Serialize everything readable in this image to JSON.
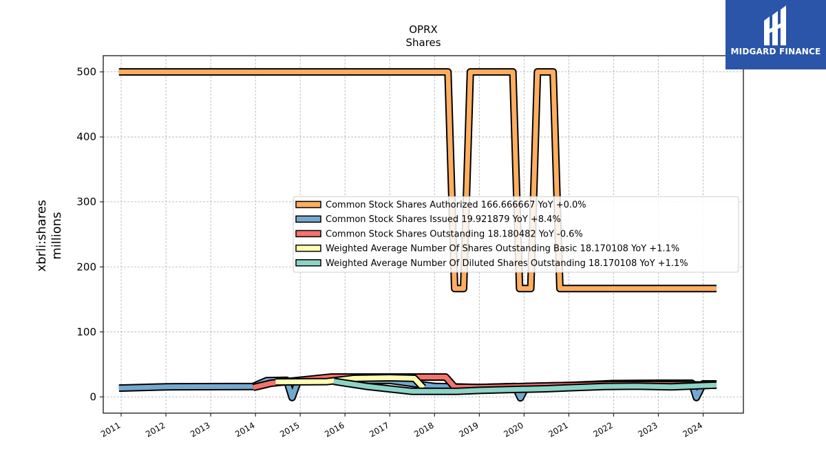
{
  "brand": {
    "name": "MIDGARD FINANCE",
    "color": "#2a55a8"
  },
  "chart_data": {
    "type": "line",
    "title": "OPRX",
    "subtitle": "Shares",
    "ylabel": "xbrli:shares",
    "ylabel2": "millions",
    "xlabel": "",
    "xlim": [
      2010.6,
      2024.9
    ],
    "ylim": [
      -25,
      525
    ],
    "yticks": [
      0,
      100,
      200,
      300,
      400,
      500
    ],
    "xticks": [
      2011,
      2012,
      2013,
      2014,
      2015,
      2016,
      2017,
      2018,
      2019,
      2020,
      2021,
      2022,
      2023,
      2024
    ],
    "grid": true,
    "legend_position": "center-right",
    "series": [
      {
        "name": "Common Stock Shares Authorized  166.666667 YoY +0.0%",
        "color": "#fdae61",
        "x": [
          2010.95,
          2018.3,
          2018.45,
          2018.65,
          2018.8,
          2018.95,
          2019.75,
          2019.9,
          2020.15,
          2020.3,
          2020.45,
          2020.65,
          2020.8,
          2021.35,
          2024.3
        ],
        "y": [
          500,
          500,
          166.67,
          166.67,
          500,
          500,
          500,
          166.67,
          166.67,
          500,
          500,
          500,
          166.67,
          166.67,
          166.67
        ]
      },
      {
        "name": "Common Stock Shares Issued  19.921879 YoY +8.4%",
        "color": "#74a9cf",
        "x": [
          2010.95,
          2012.0,
          2013.95,
          2014.25,
          2014.7,
          2014.82,
          2014.95,
          2015.6,
          2016.0,
          2017.0,
          2018.0,
          2019.0,
          2019.8,
          2019.92,
          2020.05,
          2021.0,
          2021.5,
          2022.0,
          2023.0,
          2023.75,
          2023.85,
          2024.0,
          2024.3
        ],
        "y": [
          13.5,
          15.5,
          16.0,
          25.0,
          25.5,
          -1.0,
          24.0,
          24.5,
          25.0,
          25.5,
          16.0,
          14.5,
          16.0,
          -1.5,
          16.0,
          17.5,
          19.0,
          20.5,
          21.0,
          21.0,
          -1.0,
          19.9,
          19.92
        ]
      },
      {
        "name": "Common Stock Shares Outstanding  18.180482 YoY -0.6%",
        "color": "#f4736d",
        "x": [
          2013.95,
          2014.35,
          2015.7,
          2018.25,
          2018.45,
          2019.0,
          2020.0,
          2021.0,
          2022.0,
          2023.0,
          2024.3
        ],
        "y": [
          14.5,
          21.0,
          30.5,
          30.5,
          15.0,
          14.5,
          16.0,
          17.5,
          19.0,
          19.0,
          18.18
        ]
      },
      {
        "name": "Weighted Average Number Of Shares Outstanding Basic  18.170108 YoY +1.1%",
        "color": "#ffffb3",
        "x": [
          2014.45,
          2015.6,
          2016.2,
          2017.0,
          2017.55,
          2017.75
        ],
        "y": [
          23.0,
          23.5,
          28.5,
          29.5,
          28.5,
          14.0
        ]
      },
      {
        "name": "Weighted Average Number Of Diluted Shares Outstanding  18.170108 YoY +1.1%",
        "color": "#8dd3c7",
        "x": [
          2015.75,
          2016.5,
          2017.5,
          2018.5,
          2019.0,
          2019.8,
          2020.5,
          2021.0,
          2021.8,
          2022.5,
          2023.3,
          2024.3
        ],
        "y": [
          24.0,
          16.0,
          8.5,
          8.5,
          10.0,
          11.5,
          12.5,
          14.0,
          16.0,
          16.5,
          15.5,
          18.17
        ]
      }
    ]
  }
}
